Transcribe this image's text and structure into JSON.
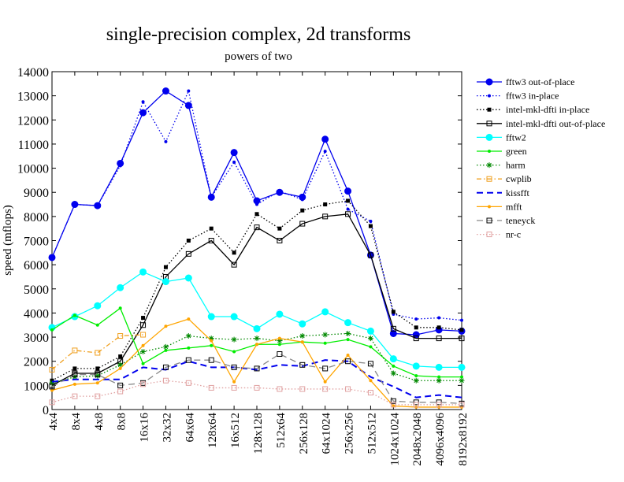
{
  "chart_data": {
    "type": "line",
    "title": "single-precision complex, 2d transforms",
    "subtitle": "powers of two",
    "y_label": "speed (mflops)",
    "categories": [
      "4x4",
      "8x4",
      "4x8",
      "8x8",
      "16x16",
      "32x32",
      "64x64",
      "128x64",
      "16x512",
      "128x128",
      "512x64",
      "256x128",
      "64x1024",
      "256x256",
      "512x512",
      "1024x1024",
      "2048x2048",
      "4096x4096",
      "8192x8192"
    ],
    "ylim": [
      0,
      14000
    ],
    "yticks": [
      0,
      1000,
      2000,
      3000,
      4000,
      5000,
      6000,
      7000,
      8000,
      9000,
      10000,
      11000,
      12000,
      13000,
      14000
    ],
    "grid": false,
    "legend": "right",
    "series": [
      {
        "name": "fftw3 out-of-place",
        "color": "#0000ee",
        "line_style": "solid",
        "marker": "circle",
        "values": [
          6300,
          8500,
          8450,
          10200,
          12300,
          13200,
          12600,
          8800,
          10650,
          8650,
          9000,
          8800,
          11200,
          9050,
          6400,
          3150,
          3100,
          3300,
          3250
        ]
      },
      {
        "name": "fftw3 in-place",
        "color": "#0000ee",
        "line_style": "dotted",
        "marker": "dot",
        "values": [
          6300,
          8500,
          8450,
          10100,
          12750,
          11100,
          13200,
          8800,
          10250,
          8500,
          9050,
          8700,
          10700,
          8300,
          7800,
          3950,
          3750,
          3800,
          3700
        ]
      },
      {
        "name": "intel-mkl-dfti in-place",
        "color": "#000000",
        "line_style": "dotted",
        "marker": "square",
        "values": [
          1200,
          1700,
          1700,
          2200,
          3800,
          5900,
          7000,
          7500,
          6500,
          8100,
          7500,
          8250,
          8500,
          8650,
          7600,
          4050,
          3400,
          3400,
          3300
        ]
      },
      {
        "name": "intel-mkl-dfti out-of-place",
        "color": "#000000",
        "line_style": "solid",
        "marker": "open-square",
        "values": [
          1000,
          1500,
          1500,
          2000,
          3500,
          5500,
          6450,
          7000,
          6000,
          7550,
          7000,
          7700,
          8000,
          8100,
          6400,
          3350,
          2950,
          2950,
          2950
        ]
      },
      {
        "name": "fftw2",
        "color": "#00ffff",
        "line_style": "solid",
        "marker": "circle",
        "values": [
          3400,
          3850,
          4300,
          5050,
          5700,
          5300,
          5450,
          3850,
          3850,
          3350,
          3950,
          3550,
          4050,
          3600,
          3250,
          2100,
          1800,
          1750,
          1750
        ]
      },
      {
        "name": "green",
        "color": "#00ee00",
        "line_style": "solid",
        "marker": "dot",
        "values": [
          3300,
          3900,
          3500,
          4200,
          1900,
          2450,
          2550,
          2650,
          2400,
          2700,
          2700,
          2800,
          2750,
          2900,
          2600,
          1800,
          1400,
          1350,
          1350
        ]
      },
      {
        "name": "harm",
        "color": "#008800",
        "line_style": "dotted",
        "marker": "star",
        "values": [
          1100,
          1350,
          1400,
          1850,
          2400,
          2600,
          3050,
          2950,
          2900,
          2950,
          2850,
          3050,
          3100,
          3150,
          2950,
          1500,
          1200,
          1200,
          1200
        ]
      },
      {
        "name": "cwplib",
        "color": "#f0a020",
        "line_style": "dashdot",
        "marker": "open-square",
        "values": [
          1650,
          2450,
          2350,
          3050,
          3100,
          null,
          null,
          null,
          null,
          null,
          null,
          null,
          null,
          null,
          null,
          null,
          null,
          null,
          null
        ]
      },
      {
        "name": "kissfft",
        "color": "#0000ee",
        "line_style": "dashed",
        "marker": "none",
        "values": [
          1150,
          1250,
          1250,
          1250,
          1750,
          1650,
          2000,
          1750,
          1750,
          1650,
          1850,
          1800,
          2050,
          2000,
          1350,
          950,
          500,
          600,
          500
        ]
      },
      {
        "name": "mfft",
        "color": "#ffa500",
        "line_style": "solid",
        "marker": "dot",
        "values": [
          800,
          1050,
          1100,
          1700,
          2650,
          3450,
          3750,
          2850,
          1150,
          2700,
          2950,
          2800,
          1150,
          2250,
          1200,
          150,
          100,
          100,
          100
        ]
      },
      {
        "name": "teneyck",
        "color": "#888888",
        "line_style": "dashed",
        "marker": "open-square",
        "values": [
          950,
          1450,
          1450,
          1000,
          1100,
          1750,
          2050,
          2050,
          1750,
          1700,
          2300,
          1850,
          1700,
          2000,
          1900,
          350,
          300,
          300,
          250
        ]
      },
      {
        "name": "nr-c",
        "color": "#e0a0a0",
        "line_style": "dotted",
        "marker": "open-square",
        "values": [
          300,
          550,
          550,
          750,
          1050,
          1200,
          1100,
          900,
          900,
          900,
          850,
          850,
          850,
          850,
          700,
          200,
          200,
          200,
          200
        ]
      }
    ]
  }
}
